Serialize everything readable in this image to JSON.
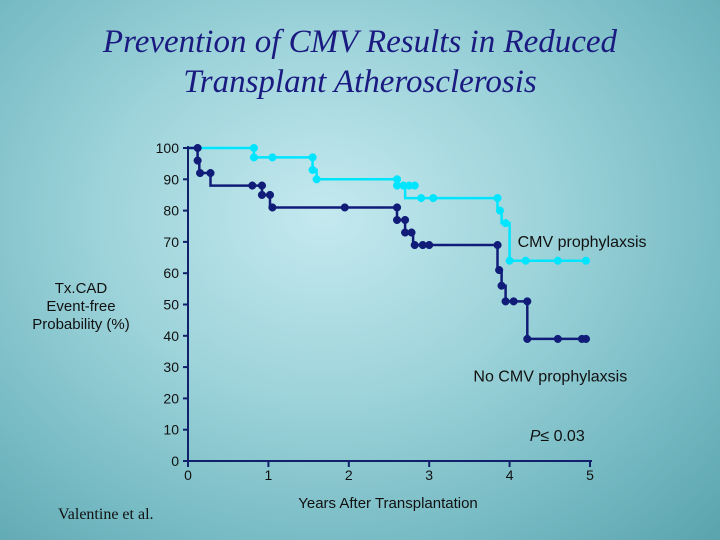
{
  "title_lines": [
    "Prevention of CMV Results in Reduced",
    "Transplant Atherosclerosis"
  ],
  "citation": "Valentine et al.",
  "colors": {
    "background": "#9dd3da",
    "title": "#1a1a80",
    "cmv_prophylaxis": "#00e5ff",
    "no_cmv_prophylaxis": "#101c78",
    "axis": "#10206a"
  },
  "chart_data": {
    "type": "line",
    "subtype": "kaplan-meier step",
    "title": "Prevention of CMV Results in Reduced Transplant Atherosclerosis",
    "xlabel": "Years After Transplantation",
    "ylabel_lines": [
      "Tx.CAD",
      "Event-free",
      "Probability (%)"
    ],
    "xlim": [
      0,
      5
    ],
    "ylim": [
      0,
      100
    ],
    "xticks": [
      0,
      1,
      2,
      3,
      4,
      5
    ],
    "yticks": [
      0,
      10,
      20,
      30,
      40,
      50,
      60,
      70,
      80,
      90,
      100
    ],
    "series": [
      {
        "name": "CMV prophylaxis",
        "color": "#00e5ff",
        "steps": [
          [
            0,
            100
          ],
          [
            0.82,
            100
          ],
          [
            0.82,
            97
          ],
          [
            1.55,
            97
          ],
          [
            1.55,
            93
          ],
          [
            1.6,
            93
          ],
          [
            1.6,
            90
          ],
          [
            2.6,
            90
          ],
          [
            2.6,
            88
          ],
          [
            2.7,
            88
          ],
          [
            2.7,
            84
          ],
          [
            3.85,
            84
          ],
          [
            3.85,
            80
          ],
          [
            3.9,
            80
          ],
          [
            3.9,
            76
          ],
          [
            4.0,
            76
          ],
          [
            4.0,
            64
          ],
          [
            4.98,
            64
          ]
        ],
        "markers": [
          [
            0.82,
            100
          ],
          [
            0.82,
            97
          ],
          [
            1.05,
            97
          ],
          [
            1.55,
            97
          ],
          [
            1.55,
            93
          ],
          [
            1.6,
            90
          ],
          [
            2.6,
            90
          ],
          [
            2.6,
            88
          ],
          [
            2.68,
            88
          ],
          [
            2.75,
            88
          ],
          [
            2.82,
            88
          ],
          [
            2.9,
            84
          ],
          [
            3.05,
            84
          ],
          [
            3.85,
            84
          ],
          [
            3.88,
            80
          ],
          [
            3.95,
            76
          ],
          [
            4.0,
            64
          ],
          [
            4.2,
            64
          ],
          [
            4.6,
            64
          ],
          [
            4.95,
            64
          ]
        ]
      },
      {
        "name": "No CMV prophylaxis",
        "color": "#101c78",
        "steps": [
          [
            0,
            100
          ],
          [
            0.12,
            100
          ],
          [
            0.12,
            96
          ],
          [
            0.14,
            96
          ],
          [
            0.14,
            92
          ],
          [
            0.28,
            92
          ],
          [
            0.28,
            88
          ],
          [
            0.92,
            88
          ],
          [
            0.92,
            85
          ],
          [
            1.02,
            85
          ],
          [
            1.02,
            81
          ],
          [
            2.6,
            81
          ],
          [
            2.6,
            77
          ],
          [
            2.7,
            77
          ],
          [
            2.7,
            73
          ],
          [
            2.8,
            73
          ],
          [
            2.8,
            69
          ],
          [
            3.85,
            69
          ],
          [
            3.85,
            61
          ],
          [
            3.9,
            61
          ],
          [
            3.9,
            56
          ],
          [
            3.95,
            56
          ],
          [
            3.95,
            51
          ],
          [
            4.22,
            51
          ],
          [
            4.22,
            39
          ],
          [
            4.98,
            39
          ]
        ],
        "markers": [
          [
            0.12,
            100
          ],
          [
            0.12,
            96
          ],
          [
            0.15,
            92
          ],
          [
            0.28,
            92
          ],
          [
            0.8,
            88
          ],
          [
            0.92,
            88
          ],
          [
            0.92,
            85
          ],
          [
            1.02,
            85
          ],
          [
            1.05,
            81
          ],
          [
            1.95,
            81
          ],
          [
            2.6,
            81
          ],
          [
            2.6,
            77
          ],
          [
            2.7,
            77
          ],
          [
            2.7,
            73
          ],
          [
            2.78,
            73
          ],
          [
            2.82,
            69
          ],
          [
            2.92,
            69
          ],
          [
            3.0,
            69
          ],
          [
            3.85,
            69
          ],
          [
            3.87,
            61
          ],
          [
            3.9,
            56
          ],
          [
            3.95,
            51
          ],
          [
            4.05,
            51
          ],
          [
            4.22,
            51
          ],
          [
            4.22,
            39
          ],
          [
            4.6,
            39
          ],
          [
            4.9,
            39
          ],
          [
            4.95,
            39
          ]
        ]
      }
    ],
    "annotations": [
      {
        "text": "CMV prophylaxsis",
        "x": 4.1,
        "y": 70
      },
      {
        "text": "No CMV prophylaxsis",
        "x": 3.55,
        "y": 27
      },
      {
        "text_p": "P",
        "text_rest": "≤ 0.03",
        "x": 4.25,
        "y": 8
      }
    ]
  }
}
